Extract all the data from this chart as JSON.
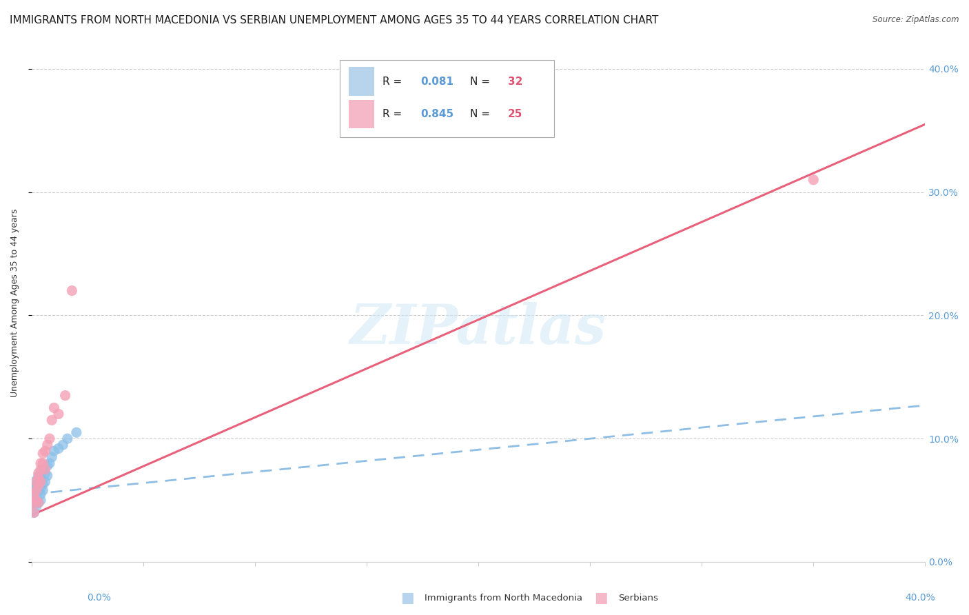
{
  "title": "IMMIGRANTS FROM NORTH MACEDONIA VS SERBIAN UNEMPLOYMENT AMONG AGES 35 TO 44 YEARS CORRELATION CHART",
  "source": "Source: ZipAtlas.com",
  "ylabel": "Unemployment Among Ages 35 to 44 years",
  "ytick_labels": [
    "0.0%",
    "10.0%",
    "20.0%",
    "30.0%",
    "40.0%"
  ],
  "ytick_vals": [
    0.0,
    0.1,
    0.2,
    0.3,
    0.4
  ],
  "legend_label1": "Immigrants from North Macedonia",
  "legend_label2": "Serbians",
  "watermark": "ZIPatlas",
  "blue_color": "#8bbfe8",
  "pink_color": "#f4a0b5",
  "blue_line_color": "#7ab3e0",
  "pink_line_color": "#e8607a",
  "xmin": 0.0,
  "xmax": 0.4,
  "ymin": 0.0,
  "ymax": 0.42,
  "blue_line": [
    0.0,
    0.055,
    0.4,
    0.127
  ],
  "pink_line": [
    0.0,
    0.038,
    0.4,
    0.355
  ],
  "grid_color": "#cccccc",
  "blue_x": [
    0.001,
    0.001,
    0.001,
    0.001,
    0.001,
    0.001,
    0.002,
    0.002,
    0.002,
    0.002,
    0.003,
    0.003,
    0.003,
    0.003,
    0.004,
    0.004,
    0.004,
    0.004,
    0.005,
    0.005,
    0.005,
    0.006,
    0.006,
    0.007,
    0.007,
    0.008,
    0.009,
    0.01,
    0.012,
    0.014,
    0.016,
    0.02
  ],
  "blue_y": [
    0.055,
    0.06,
    0.065,
    0.05,
    0.048,
    0.04,
    0.058,
    0.062,
    0.052,
    0.045,
    0.065,
    0.07,
    0.058,
    0.048,
    0.06,
    0.068,
    0.055,
    0.05,
    0.075,
    0.063,
    0.058,
    0.072,
    0.065,
    0.078,
    0.07,
    0.08,
    0.085,
    0.09,
    0.092,
    0.095,
    0.1,
    0.105
  ],
  "pink_x": [
    0.001,
    0.001,
    0.001,
    0.002,
    0.002,
    0.002,
    0.003,
    0.003,
    0.003,
    0.003,
    0.004,
    0.004,
    0.004,
    0.005,
    0.005,
    0.006,
    0.006,
    0.007,
    0.008,
    0.009,
    0.01,
    0.012,
    0.015,
    0.018,
    0.35
  ],
  "pink_y": [
    0.055,
    0.048,
    0.04,
    0.065,
    0.058,
    0.05,
    0.072,
    0.068,
    0.062,
    0.048,
    0.08,
    0.075,
    0.065,
    0.088,
    0.08,
    0.09,
    0.075,
    0.095,
    0.1,
    0.115,
    0.125,
    0.12,
    0.135,
    0.22,
    0.31
  ],
  "scatter_size": 120,
  "title_fontsize": 11,
  "tick_color": "#5b9bd5",
  "tick_fontsize": 10
}
